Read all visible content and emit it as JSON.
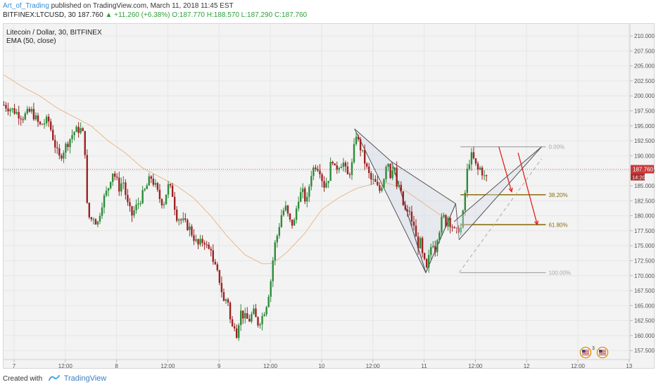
{
  "header": {
    "author": "Art_of_Trading",
    "published_text": "published on TradingView.com, March 11, 2018 11:45 EST",
    "symbol": "BITFINEX:LTCUSD, 30",
    "last": "187.760",
    "change": "▲ +11.260 (+6.38%)",
    "open": "O:187.770",
    "high": "H:188.570",
    "low": "L:187.290",
    "close": "C:187.760"
  },
  "legend": {
    "title": "Litecoin / Dollar, 30, BITFINEX",
    "indicator": "EMA (50, close)"
  },
  "footer": {
    "created_with": "Created with",
    "brand": "TradingView"
  },
  "events": {
    "count": "3"
  },
  "colors": {
    "up": "#2e8b3a",
    "down": "#9c2222",
    "ema": "#e8b98c",
    "pattern": "#555555",
    "pattern_fill": "#d7dde8",
    "fib_gray": "#a8a8a8",
    "fib_gold": "#8b6d0e",
    "arrow": "#e02020",
    "price_line": "#d33b3b"
  },
  "chart_data": {
    "type": "candlestick",
    "title": "Litecoin / Dollar, 30, BITFINEX",
    "ylim": [
      156.0,
      212.0
    ],
    "y_ticks": [
      "157.500",
      "160.000",
      "162.500",
      "165.000",
      "167.500",
      "170.000",
      "172.500",
      "175.000",
      "177.500",
      "180.000",
      "182.500",
      "185.000",
      "187.500",
      "190.000",
      "192.500",
      "195.000",
      "197.500",
      "200.000",
      "202.500",
      "205.000",
      "207.500",
      "210.000"
    ],
    "x_labels": [
      {
        "label": "7",
        "t": 0
      },
      {
        "label": "12:00",
        "t": 12
      },
      {
        "label": "8",
        "t": 24
      },
      {
        "label": "12:00",
        "t": 36
      },
      {
        "label": "9",
        "t": 48
      },
      {
        "label": "12:00",
        "t": 60
      },
      {
        "label": "10",
        "t": 72
      },
      {
        "label": "12:00",
        "t": 84
      },
      {
        "label": "11",
        "t": 96
      },
      {
        "label": "12:00",
        "t": 108
      },
      {
        "label": "12",
        "t": 120
      },
      {
        "label": "12:00",
        "t": 132
      },
      {
        "label": "13",
        "t": 144
      }
    ],
    "current_price": {
      "value": 187.76,
      "label": "187.760",
      "countdown": "14:20"
    },
    "price_anchors": [
      [
        -2.4,
        198.5
      ],
      [
        0,
        197.5
      ],
      [
        2,
        196.5
      ],
      [
        4,
        197.5
      ],
      [
        6,
        195.0
      ],
      [
        8,
        196.0
      ],
      [
        9.5,
        192.0
      ],
      [
        10.5,
        189.5
      ],
      [
        12,
        191.5
      ],
      [
        14,
        194.0
      ],
      [
        15.5,
        194.5
      ],
      [
        16.5,
        193.0
      ],
      [
        17,
        182.0
      ],
      [
        17.8,
        179.0
      ],
      [
        18.5,
        180.0
      ],
      [
        19.5,
        178.5
      ],
      [
        20.5,
        182.0
      ],
      [
        22,
        184.5
      ],
      [
        23,
        187.5
      ],
      [
        24,
        186.0
      ],
      [
        24.5,
        184.5
      ],
      [
        25.5,
        186.0
      ],
      [
        26.5,
        182.0
      ],
      [
        27.5,
        180.0
      ],
      [
        29,
        182.0
      ],
      [
        30.5,
        184.0
      ],
      [
        32,
        186.5
      ],
      [
        33,
        185.0
      ],
      [
        34,
        183.0
      ],
      [
        35,
        182.0
      ],
      [
        36,
        185.0
      ],
      [
        37,
        184.0
      ],
      [
        38,
        180.0
      ],
      [
        39.5,
        179.0
      ],
      [
        41,
        178.0
      ],
      [
        42,
        176.5
      ],
      [
        43,
        175.0
      ],
      [
        44.5,
        176.0
      ],
      [
        45.5,
        174.0
      ],
      [
        46,
        175.5
      ],
      [
        46.5,
        172.0
      ],
      [
        47,
        171.5
      ],
      [
        48,
        169.5
      ],
      [
        48.5,
        168.0
      ],
      [
        49,
        165.5
      ],
      [
        50,
        166.5
      ],
      [
        50.5,
        163.0
      ],
      [
        51,
        161.0
      ],
      [
        51.5,
        162.5
      ],
      [
        52,
        160.0
      ],
      [
        53,
        164.0
      ],
      [
        54,
        163.0
      ],
      [
        55,
        162.5
      ],
      [
        56,
        164.0
      ],
      [
        57,
        162.0
      ],
      [
        58,
        163.0
      ],
      [
        59,
        165.0
      ],
      [
        60,
        168.5
      ],
      [
        60.5,
        172.0
      ],
      [
        61,
        175.0
      ],
      [
        61.7,
        177.0
      ],
      [
        62.5,
        180.0
      ],
      [
        63.5,
        181.5
      ],
      [
        64.5,
        179.0
      ],
      [
        65.5,
        178.5
      ],
      [
        66.5,
        183.0
      ],
      [
        67.5,
        184.0
      ],
      [
        68.5,
        182.0
      ],
      [
        69.5,
        187.0
      ],
      [
        70.5,
        188.5
      ],
      [
        71.5,
        188.0
      ],
      [
        72.5,
        185.0
      ],
      [
        73.5,
        186.0
      ],
      [
        74.5,
        190.0
      ],
      [
        75,
        187.5
      ],
      [
        76,
        188.5
      ],
      [
        77,
        189.0
      ],
      [
        78,
        186.5
      ],
      [
        79,
        188.0
      ],
      [
        79.5,
        190.5
      ],
      [
        80,
        194.0
      ],
      [
        80.5,
        192.5
      ],
      [
        81.5,
        190.5
      ],
      [
        82.5,
        188.0
      ],
      [
        83.5,
        186.0
      ],
      [
        84.5,
        185.5
      ],
      [
        85.5,
        184.0
      ],
      [
        86.5,
        186.0
      ],
      [
        87,
        188.5
      ],
      [
        87.5,
        189.5
      ],
      [
        88,
        186.5
      ],
      [
        88.5,
        188.0
      ],
      [
        89,
        189.0
      ],
      [
        89.5,
        184.0
      ],
      [
        90,
        185.5
      ],
      [
        91,
        182.0
      ],
      [
        92,
        180.0
      ],
      [
        92.5,
        181.5
      ],
      [
        93,
        178.5
      ],
      [
        93.5,
        179.0
      ],
      [
        94,
        176.5
      ],
      [
        94.5,
        175.0
      ],
      [
        95,
        176.0
      ],
      [
        95.5,
        173.5
      ],
      [
        96,
        172.5
      ],
      [
        96.5,
        170.5
      ],
      [
        97,
        172.5
      ],
      [
        97.5,
        174.5
      ],
      [
        98,
        176.0
      ],
      [
        98.5,
        174.0
      ],
      [
        99,
        176.5
      ],
      [
        99.5,
        177.5
      ],
      [
        100,
        179.0
      ],
      [
        100.5,
        180.0
      ],
      [
        101,
        178.5
      ],
      [
        101.5,
        180.0
      ],
      [
        102,
        179.0
      ],
      [
        102.5,
        178.5
      ],
      [
        103,
        177.5
      ],
      [
        103.5,
        177.0
      ],
      [
        104,
        178.0
      ],
      [
        104.5,
        177.5
      ],
      [
        105,
        179.5
      ],
      [
        105.5,
        183.0
      ],
      [
        106,
        187.0
      ],
      [
        106.5,
        189.0
      ],
      [
        107,
        190.0
      ],
      [
        107.5,
        189.5
      ],
      [
        108,
        188.5
      ],
      [
        108.5,
        187.5
      ],
      [
        109,
        188.0
      ],
      [
        109.5,
        187.5
      ],
      [
        110,
        186.5
      ],
      [
        110.5,
        186.0
      ],
      [
        111,
        187.76
      ]
    ],
    "ema_anchors": [
      [
        -2.4,
        203.5
      ],
      [
        2,
        201.5
      ],
      [
        6,
        200.0
      ],
      [
        10,
        198.0
      ],
      [
        14,
        196.5
      ],
      [
        18,
        195.0
      ],
      [
        22,
        192.5
      ],
      [
        26,
        190.5
      ],
      [
        30,
        188.0
      ],
      [
        34,
        186.5
      ],
      [
        38,
        185.0
      ],
      [
        42,
        183.0
      ],
      [
        46,
        180.0
      ],
      [
        50,
        176.5
      ],
      [
        54,
        173.5
      ],
      [
        58,
        172.0
      ],
      [
        60,
        172.0
      ],
      [
        62,
        172.8
      ],
      [
        64,
        174.0
      ],
      [
        66,
        175.5
      ],
      [
        68,
        177.0
      ],
      [
        70,
        179.0
      ],
      [
        72,
        181.0
      ],
      [
        76,
        183.0
      ],
      [
        80,
        184.5
      ],
      [
        84,
        185.3
      ],
      [
        86,
        185.6
      ],
      [
        88,
        185.3
      ],
      [
        90,
        184.8
      ],
      [
        92,
        184.0
      ],
      [
        94,
        183.0
      ],
      [
        96,
        182.0
      ],
      [
        98,
        181.0
      ],
      [
        100,
        180.0
      ],
      [
        102,
        179.5
      ],
      [
        103,
        179.3
      ]
    ],
    "pattern": {
      "label": "bearish harmonic pattern (XABCD)",
      "X": [
        79.7,
        194.5
      ],
      "A": [
        88.4,
        189.0
      ],
      "B": [
        96.4,
        170.5
      ],
      "C": [
        103.4,
        182.0
      ],
      "D": [
        104.2,
        176.0
      ]
    },
    "projection": {
      "apex": [
        123.5,
        191.5
      ],
      "upper_from": [
        104.2,
        176.0
      ],
      "lower_from": [
        103.0,
        179.0
      ],
      "dashed_from": [
        104.2,
        170.5
      ],
      "dashed_to": [
        123.5,
        189.5
      ]
    },
    "fibonacci": [
      {
        "level": "0.00%",
        "price": 191.5,
        "from_t": 104.5,
        "to_t": 124.5
      },
      {
        "level": "38.20%",
        "price": 183.5,
        "from_t": 104.5,
        "to_t": 124.5
      },
      {
        "level": "61.80%",
        "price": 178.5,
        "from_t": 104.5,
        "to_t": 124.5
      },
      {
        "level": "100.00%",
        "price": 170.5,
        "from_t": 104.5,
        "to_t": 124.5
      }
    ],
    "arrows": [
      {
        "from": [
          113.5,
          191.5
        ],
        "to": [
          116.5,
          184.0
        ]
      },
      {
        "from": [
          118.0,
          190.5
        ],
        "to": [
          122.5,
          178.5
        ]
      }
    ]
  }
}
